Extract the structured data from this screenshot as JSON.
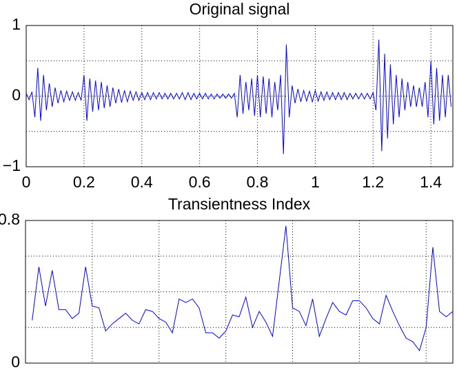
{
  "chart_data": [
    {
      "type": "line",
      "title": "Original signal",
      "x": [
        0,
        0.01,
        0.02,
        0.03,
        0.04,
        0.05,
        0.06,
        0.07,
        0.08,
        0.09,
        0.1,
        0.11,
        0.12,
        0.13,
        0.14,
        0.15,
        0.16,
        0.17,
        0.18,
        0.19,
        0.2,
        0.21,
        0.22,
        0.23,
        0.24,
        0.25,
        0.26,
        0.27,
        0.28,
        0.29,
        0.3,
        0.31,
        0.32,
        0.33,
        0.34,
        0.35,
        0.36,
        0.37,
        0.38,
        0.39,
        0.4,
        0.41,
        0.42,
        0.43,
        0.44,
        0.45,
        0.46,
        0.47,
        0.48,
        0.49,
        0.5,
        0.51,
        0.52,
        0.53,
        0.54,
        0.55,
        0.56,
        0.57,
        0.58,
        0.59,
        0.6,
        0.61,
        0.62,
        0.63,
        0.64,
        0.65,
        0.66,
        0.67,
        0.68,
        0.69,
        0.7,
        0.71,
        0.72,
        0.73,
        0.74,
        0.75,
        0.76,
        0.77,
        0.78,
        0.79,
        0.8,
        0.81,
        0.82,
        0.83,
        0.84,
        0.85,
        0.86,
        0.87,
        0.88,
        0.89,
        0.9,
        0.91,
        0.92,
        0.93,
        0.94,
        0.95,
        0.96,
        0.97,
        0.98,
        0.99,
        1,
        1.01,
        1.02,
        1.03,
        1.04,
        1.05,
        1.06,
        1.07,
        1.08,
        1.09,
        1.1,
        1.11,
        1.12,
        1.13,
        1.14,
        1.15,
        1.16,
        1.17,
        1.18,
        1.19,
        1.2,
        1.21,
        1.22,
        1.23,
        1.24,
        1.25,
        1.26,
        1.27,
        1.28,
        1.29,
        1.3,
        1.31,
        1.32,
        1.33,
        1.34,
        1.35,
        1.36,
        1.37,
        1.38,
        1.39,
        1.4,
        1.41,
        1.42,
        1.43,
        1.44,
        1.45,
        1.46,
        1.47
      ],
      "series": [
        {
          "color": "#0000ff",
          "values": [
            0.04,
            -0.05,
            0.06,
            -0.3,
            0.4,
            -0.35,
            0.3,
            -0.2,
            0.18,
            -0.15,
            0.12,
            -0.1,
            0.08,
            -0.08,
            0.07,
            -0.06,
            0.06,
            -0.06,
            0.05,
            -0.06,
            0.3,
            -0.35,
            0.25,
            -0.22,
            0.22,
            -0.2,
            0.2,
            -0.17,
            0.15,
            -0.15,
            0.12,
            -0.1,
            0.1,
            -0.09,
            0.08,
            -0.08,
            0.07,
            -0.06,
            0.06,
            -0.06,
            0.05,
            -0.05,
            0.05,
            -0.05,
            0.05,
            -0.04,
            0.05,
            -0.04,
            0.04,
            -0.04,
            0.04,
            -0.04,
            0.04,
            -0.04,
            0.05,
            -0.05,
            0.05,
            -0.05,
            0.04,
            -0.04,
            0.04,
            -0.04,
            0.04,
            -0.04,
            0.03,
            -0.04,
            0.03,
            -0.03,
            0.03,
            -0.03,
            0.03,
            -0.03,
            0.04,
            -0.3,
            0.3,
            -0.25,
            0.2,
            -0.2,
            0.25,
            -0.28,
            0.3,
            -0.3,
            0.28,
            -0.25,
            0.25,
            -0.3,
            0.2,
            -0.2,
            0.3,
            -0.82,
            0.73,
            -0.3,
            0.15,
            -0.1,
            0.1,
            -0.08,
            0.08,
            -0.07,
            0.07,
            -0.08,
            0.08,
            -0.07,
            0.06,
            -0.06,
            0.06,
            -0.05,
            0.05,
            -0.05,
            0.05,
            -0.05,
            0.05,
            -0.05,
            0.04,
            -0.04,
            0.04,
            -0.04,
            0.04,
            -0.04,
            0.04,
            -0.04,
            0.05,
            -0.2,
            0.8,
            -0.78,
            0.6,
            -0.6,
            0.45,
            -0.4,
            0.3,
            -0.3,
            0.25,
            -0.2,
            0.2,
            -0.15,
            0.15,
            -0.15,
            0.12,
            -0.15,
            0.2,
            -0.3,
            0.5,
            -0.4,
            0.4,
            -0.35,
            0.3,
            -0.3,
            0.3,
            -0.15
          ]
        }
      ],
      "xlim": [
        0,
        1.476
      ],
      "xticks": [
        0,
        0.2,
        0.4,
        0.6,
        0.8,
        1,
        1.2,
        1.4
      ],
      "ylim": [
        -1,
        1
      ],
      "yticks": [
        {
          "value": -1,
          "label": "−1"
        },
        0,
        1
      ],
      "ygrid": [
        -0.5,
        0.5
      ],
      "grid": true
    },
    {
      "type": "line",
      "title": "Transientness Index",
      "x": [
        1,
        2,
        3,
        4,
        5,
        6,
        7,
        8,
        9,
        10,
        11,
        12,
        13,
        14,
        15,
        16,
        17,
        18,
        19,
        20,
        21,
        22,
        23,
        24,
        25,
        26,
        27,
        28,
        29,
        30,
        31,
        32,
        33,
        34,
        35,
        36,
        37,
        38,
        39,
        40,
        41,
        42,
        43,
        44,
        45,
        46,
        47,
        48,
        49,
        50,
        51,
        52,
        53,
        54,
        55,
        56,
        57,
        58,
        59,
        60,
        61,
        62,
        63,
        64
      ],
      "series": [
        {
          "color": "#0000ff",
          "values": [
            0.24,
            0.54,
            0.32,
            0.52,
            0.3,
            0.3,
            0.25,
            0.28,
            0.54,
            0.32,
            0.31,
            0.18,
            0.22,
            0.25,
            0.28,
            0.24,
            0.22,
            0.3,
            0.29,
            0.25,
            0.23,
            0.17,
            0.36,
            0.34,
            0.36,
            0.31,
            0.17,
            0.17,
            0.14,
            0.18,
            0.27,
            0.26,
            0.37,
            0.2,
            0.29,
            0.23,
            0.15,
            0.46,
            0.77,
            0.31,
            0.29,
            0.21,
            0.36,
            0.15,
            0.25,
            0.34,
            0.29,
            0.27,
            0.35,
            0.35,
            0.31,
            0.25,
            0.22,
            0.38,
            0.29,
            0.21,
            0.14,
            0.12,
            0.07,
            0.2,
            0.65,
            0.29,
            0.26,
            0.29
          ]
        }
      ],
      "xlim": [
        0,
        64
      ],
      "xgrid": [
        10,
        20,
        30,
        40,
        50,
        60
      ],
      "ylim": [
        0,
        0.8
      ],
      "yticks": [
        0,
        0.8
      ],
      "ygrid": [
        0.2,
        0.4,
        0.6
      ],
      "grid": true
    }
  ]
}
